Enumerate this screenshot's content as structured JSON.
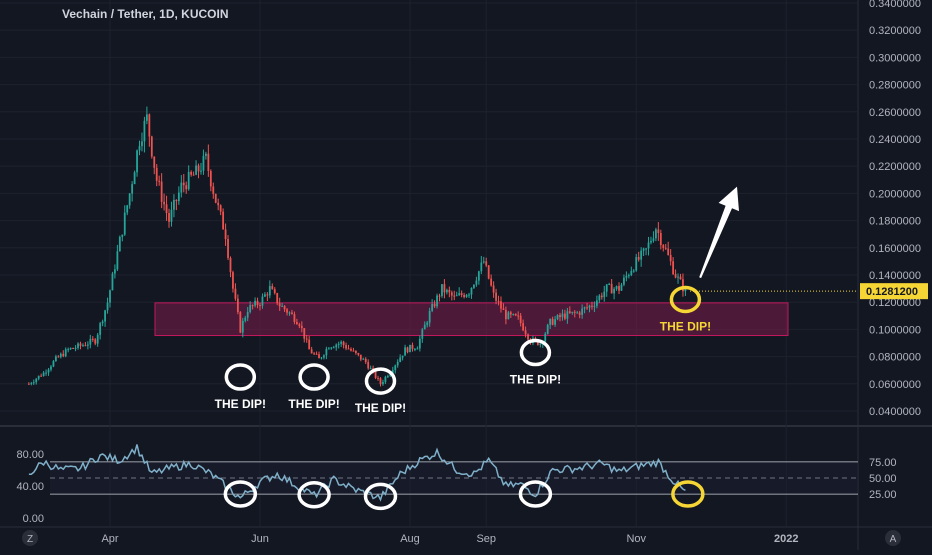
{
  "chart_data": [
    {
      "type": "candlestick",
      "title": "Vechain / Tether, 1D, KUCOIN",
      "ylim": [
        0.03,
        0.345
      ],
      "y_ticks": [
        "0.0400000",
        "0.0600000",
        "0.0800000",
        "0.1000000",
        "0.1200000",
        "0.1400000",
        "0.1600000",
        "0.1800000",
        "0.2000000",
        "0.2200000",
        "0.2400000",
        "0.2600000",
        "0.2800000",
        "0.3000000",
        "0.3200000",
        "0.3400000"
      ],
      "last_price_label": "0.1281200",
      "x_tick_labels": [
        "Apr",
        "Jun",
        "Aug",
        "Sep",
        "Nov",
        "2022"
      ],
      "up_color": "#26a69a",
      "down_color": "#ef5350",
      "support_zone": {
        "low": 0.0955,
        "high": 0.1195,
        "color": "#7b1e4a"
      },
      "close_path": [
        {
          "date": "2021-02-27",
          "price": 0.06
        },
        {
          "date": "2021-03-05",
          "price": 0.068
        },
        {
          "date": "2021-03-10",
          "price": 0.078
        },
        {
          "date": "2021-03-15",
          "price": 0.085
        },
        {
          "date": "2021-03-20",
          "price": 0.088
        },
        {
          "date": "2021-03-26",
          "price": 0.092
        },
        {
          "date": "2021-03-31",
          "price": 0.12
        },
        {
          "date": "2021-04-05",
          "price": 0.165
        },
        {
          "date": "2021-04-09",
          "price": 0.2
        },
        {
          "date": "2021-04-13",
          "price": 0.24
        },
        {
          "date": "2021-04-16",
          "price": 0.255
        },
        {
          "date": "2021-04-20",
          "price": 0.21
        },
        {
          "date": "2021-04-25",
          "price": 0.18
        },
        {
          "date": "2021-04-30",
          "price": 0.205
        },
        {
          "date": "2021-05-06",
          "price": 0.215
        },
        {
          "date": "2021-05-10",
          "price": 0.225
        },
        {
          "date": "2021-05-14",
          "price": 0.195
        },
        {
          "date": "2021-05-18",
          "price": 0.17
        },
        {
          "date": "2021-05-21",
          "price": 0.13
        },
        {
          "date": "2021-05-24",
          "price": 0.1
        },
        {
          "date": "2021-05-27",
          "price": 0.115
        },
        {
          "date": "2021-06-01",
          "price": 0.12
        },
        {
          "date": "2021-06-05",
          "price": 0.13
        },
        {
          "date": "2021-06-09",
          "price": 0.118
        },
        {
          "date": "2021-06-13",
          "price": 0.112
        },
        {
          "date": "2021-06-17",
          "price": 0.105
        },
        {
          "date": "2021-06-21",
          "price": 0.085
        },
        {
          "date": "2021-06-25",
          "price": 0.078
        },
        {
          "date": "2021-06-29",
          "price": 0.088
        },
        {
          "date": "2021-07-04",
          "price": 0.09
        },
        {
          "date": "2021-07-09",
          "price": 0.083
        },
        {
          "date": "2021-07-14",
          "price": 0.076
        },
        {
          "date": "2021-07-20",
          "price": 0.06
        },
        {
          "date": "2021-07-25",
          "price": 0.072
        },
        {
          "date": "2021-07-30",
          "price": 0.085
        },
        {
          "date": "2021-08-04",
          "price": 0.088
        },
        {
          "date": "2021-08-09",
          "price": 0.112
        },
        {
          "date": "2021-08-14",
          "price": 0.13
        },
        {
          "date": "2021-08-19",
          "price": 0.123
        },
        {
          "date": "2021-08-25",
          "price": 0.128
        },
        {
          "date": "2021-08-31",
          "price": 0.15
        },
        {
          "date": "2021-09-04",
          "price": 0.125
        },
        {
          "date": "2021-09-09",
          "price": 0.11
        },
        {
          "date": "2021-09-14",
          "price": 0.108
        },
        {
          "date": "2021-09-19",
          "price": 0.092
        },
        {
          "date": "2021-09-23",
          "price": 0.09
        },
        {
          "date": "2021-09-27",
          "price": 0.105
        },
        {
          "date": "2021-10-02",
          "price": 0.11
        },
        {
          "date": "2021-10-08",
          "price": 0.112
        },
        {
          "date": "2021-10-14",
          "price": 0.118
        },
        {
          "date": "2021-10-20",
          "price": 0.13
        },
        {
          "date": "2021-10-25",
          "price": 0.13
        },
        {
          "date": "2021-10-30",
          "price": 0.145
        },
        {
          "date": "2021-11-05",
          "price": 0.158
        },
        {
          "date": "2021-11-09",
          "price": 0.175
        },
        {
          "date": "2021-11-13",
          "price": 0.158
        },
        {
          "date": "2021-11-17",
          "price": 0.14
        },
        {
          "date": "2021-11-21",
          "price": 0.128
        }
      ],
      "dip_markers": [
        {
          "date": "2021-05-24",
          "price": 0.065,
          "label": "THE DIP!",
          "color": "#ffffff",
          "label_pos": "below"
        },
        {
          "date": "2021-06-23",
          "price": 0.065,
          "label": "THE DIP!",
          "color": "#ffffff",
          "label_pos": "below"
        },
        {
          "date": "2021-07-20",
          "price": 0.062,
          "label": "THE DIP!",
          "color": "#ffffff",
          "label_pos": "below"
        },
        {
          "date": "2021-09-21",
          "price": 0.083,
          "label": "THE DIP!",
          "color": "#ffffff",
          "label_pos": "below"
        },
        {
          "date": "2021-11-21",
          "price": 0.122,
          "label": "THE DIP!",
          "color": "#f5d634",
          "label_pos": "below"
        }
      ],
      "arrow": {
        "from": {
          "date": "2021-11-27",
          "price": 0.138
        },
        "to": {
          "date": "2021-12-12",
          "price": 0.205
        },
        "color": "#ffffff"
      }
    },
    {
      "type": "line",
      "indicator_axis_left": [
        "80.00",
        "40.00",
        "0.00"
      ],
      "indicator_axis_right": [
        "75.00",
        "50.00",
        "25.00"
      ],
      "ylim": [
        15,
        100
      ],
      "levels": [
        {
          "value": 70,
          "style": "solid"
        },
        {
          "value": 50,
          "style": "dashed"
        },
        {
          "value": 30,
          "style": "solid"
        }
      ],
      "line_color": "#7fb0c9",
      "series": [
        {
          "date": "2021-02-27",
          "value": 55
        },
        {
          "date": "2021-03-05",
          "value": 70
        },
        {
          "date": "2021-03-12",
          "value": 60
        },
        {
          "date": "2021-03-20",
          "value": 62
        },
        {
          "date": "2021-03-28",
          "value": 78
        },
        {
          "date": "2021-04-05",
          "value": 72
        },
        {
          "date": "2021-04-12",
          "value": 88
        },
        {
          "date": "2021-04-18",
          "value": 55
        },
        {
          "date": "2021-04-25",
          "value": 62
        },
        {
          "date": "2021-05-04",
          "value": 68
        },
        {
          "date": "2021-05-12",
          "value": 55
        },
        {
          "date": "2021-05-18",
          "value": 40
        },
        {
          "date": "2021-05-24",
          "value": 25
        },
        {
          "date": "2021-06-01",
          "value": 45
        },
        {
          "date": "2021-06-08",
          "value": 55
        },
        {
          "date": "2021-06-15",
          "value": 42
        },
        {
          "date": "2021-06-23",
          "value": 28
        },
        {
          "date": "2021-07-01",
          "value": 48
        },
        {
          "date": "2021-07-10",
          "value": 35
        },
        {
          "date": "2021-07-20",
          "value": 25
        },
        {
          "date": "2021-07-28",
          "value": 55
        },
        {
          "date": "2021-08-05",
          "value": 72
        },
        {
          "date": "2021-08-12",
          "value": 82
        },
        {
          "date": "2021-08-20",
          "value": 60
        },
        {
          "date": "2021-08-27",
          "value": 55
        },
        {
          "date": "2021-09-02",
          "value": 72
        },
        {
          "date": "2021-09-09",
          "value": 40
        },
        {
          "date": "2021-09-15",
          "value": 42
        },
        {
          "date": "2021-09-21",
          "value": 30
        },
        {
          "date": "2021-09-28",
          "value": 60
        },
        {
          "date": "2021-10-08",
          "value": 62
        },
        {
          "date": "2021-10-18",
          "value": 68
        },
        {
          "date": "2021-10-25",
          "value": 58
        },
        {
          "date": "2021-11-02",
          "value": 65
        },
        {
          "date": "2021-11-10",
          "value": 70
        },
        {
          "date": "2021-11-15",
          "value": 50
        },
        {
          "date": "2021-11-21",
          "value": 32
        }
      ],
      "circles": [
        {
          "date": "2021-05-24",
          "value": 30,
          "color": "#ffffff"
        },
        {
          "date": "2021-06-23",
          "value": 29,
          "color": "#ffffff"
        },
        {
          "date": "2021-07-20",
          "value": 27,
          "color": "#ffffff"
        },
        {
          "date": "2021-09-21",
          "value": 30,
          "color": "#ffffff"
        },
        {
          "date": "2021-11-22",
          "value": 30,
          "color": "#f5d634"
        }
      ]
    }
  ],
  "bottom_bar": {
    "left_button": "Z",
    "right_button": "A"
  }
}
